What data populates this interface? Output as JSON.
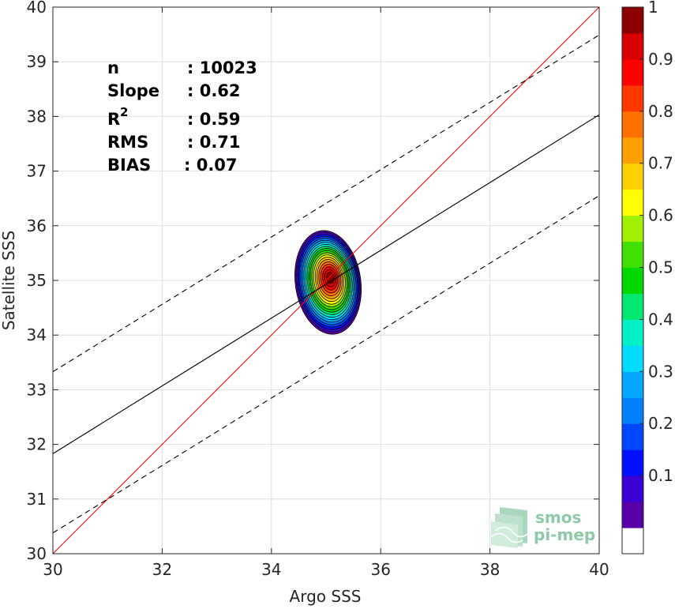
{
  "chart_data": {
    "type": "contour",
    "xlabel": "Argo SSS",
    "ylabel": "Satellite SSS",
    "xlim": [
      30,
      40
    ],
    "ylim": [
      30,
      40
    ],
    "xticks": [
      30,
      32,
      34,
      36,
      38,
      40
    ],
    "yticks": [
      30,
      31,
      32,
      33,
      34,
      35,
      36,
      37,
      38,
      39,
      40
    ],
    "grid": true,
    "stats": {
      "n_label": "n",
      "n_value": ": 10023",
      "slope_label": "Slope",
      "slope_value": ": 0.62",
      "r2_label": "R",
      "r2_sup": "2",
      "r2_value": ": 0.59",
      "rms_label": "RMS",
      "rms_value": ": 0.71",
      "bias_label": "BIAS",
      "bias_value": ": 0.07"
    },
    "reference_lines": [
      {
        "name_hidden": true,
        "style": "solid",
        "color": "#ff0000",
        "points": [
          [
            30,
            30
          ],
          [
            40,
            40
          ]
        ]
      },
      {
        "name_hidden": true,
        "style": "solid",
        "color": "#000000",
        "points": [
          [
            30,
            31.83
          ],
          [
            40,
            38.03
          ]
        ]
      },
      {
        "name_hidden": true,
        "style": "dashed",
        "color": "#000000",
        "points": [
          [
            30,
            33.33
          ],
          [
            40,
            39.49
          ]
        ]
      },
      {
        "name_hidden": true,
        "style": "dashed",
        "color": "#000000",
        "points": [
          [
            30,
            30.38
          ],
          [
            40,
            36.55
          ]
        ]
      }
    ],
    "density_peak": {
      "x": 35.08,
      "y": 35.05
    },
    "contour_levels": [
      0.05,
      0.1,
      0.15,
      0.2,
      0.25,
      0.3,
      0.35,
      0.4,
      0.45,
      0.5,
      0.55,
      0.6,
      0.65,
      0.7,
      0.75,
      0.8,
      0.85,
      0.9,
      0.95,
      1.0
    ],
    "colorbar": {
      "ticks": [
        "0.1",
        "0.2",
        "0.3",
        "0.4",
        "0.5",
        "0.6",
        "0.7",
        "0.8",
        "0.9",
        "1"
      ],
      "colors": [
        "#ffffff",
        "#5a00a8",
        "#3a00d4",
        "#0010ff",
        "#0048ff",
        "#0080ff",
        "#00a8ff",
        "#00dcff",
        "#00f0c8",
        "#00e870",
        "#00d800",
        "#40e000",
        "#a0f000",
        "#ffff00",
        "#ffd000",
        "#ffa000",
        "#ff7000",
        "#ff3800",
        "#ff0000",
        "#d80000",
        "#8c0000"
      ]
    }
  },
  "watermark": {
    "line1": "smos",
    "line2": "pi-mep"
  }
}
